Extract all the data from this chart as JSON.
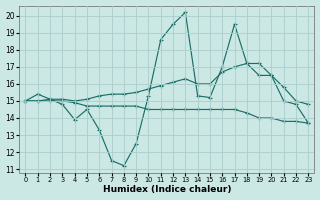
{
  "background_color": "#cce8e4",
  "grid_color": "#aacece",
  "line_color": "#1a6e68",
  "xlabel": "Humidex (Indice chaleur)",
  "xlim": [
    -0.5,
    23.5
  ],
  "ylim": [
    10.8,
    20.6
  ],
  "yticks": [
    11,
    12,
    13,
    14,
    15,
    16,
    17,
    18,
    19,
    20
  ],
  "xticks": [
    0,
    1,
    2,
    3,
    4,
    5,
    6,
    7,
    8,
    9,
    10,
    11,
    12,
    13,
    14,
    15,
    16,
    17,
    18,
    19,
    20,
    21,
    22,
    23
  ],
  "series": [
    [
      15.0,
      15.4,
      15.1,
      14.8,
      13.9,
      14.5,
      13.3,
      11.5,
      11.2,
      12.5,
      15.3,
      18.6,
      19.5,
      20.2,
      15.3,
      15.2,
      17.0,
      19.5,
      17.2,
      16.5,
      16.5,
      15.0,
      14.8,
      13.7
    ],
    [
      15.0,
      15.0,
      15.1,
      15.1,
      15.0,
      15.1,
      15.3,
      15.4,
      15.4,
      15.5,
      15.7,
      15.9,
      16.1,
      16.3,
      16.0,
      16.0,
      16.7,
      17.0,
      17.2,
      17.2,
      16.5,
      15.8,
      15.0,
      14.8
    ],
    [
      15.0,
      15.0,
      15.0,
      15.0,
      14.9,
      14.7,
      14.7,
      14.7,
      14.7,
      14.7,
      14.5,
      14.5,
      14.5,
      14.5,
      14.5,
      14.5,
      14.5,
      14.5,
      14.3,
      14.0,
      14.0,
      13.8,
      13.8,
      13.7
    ]
  ]
}
